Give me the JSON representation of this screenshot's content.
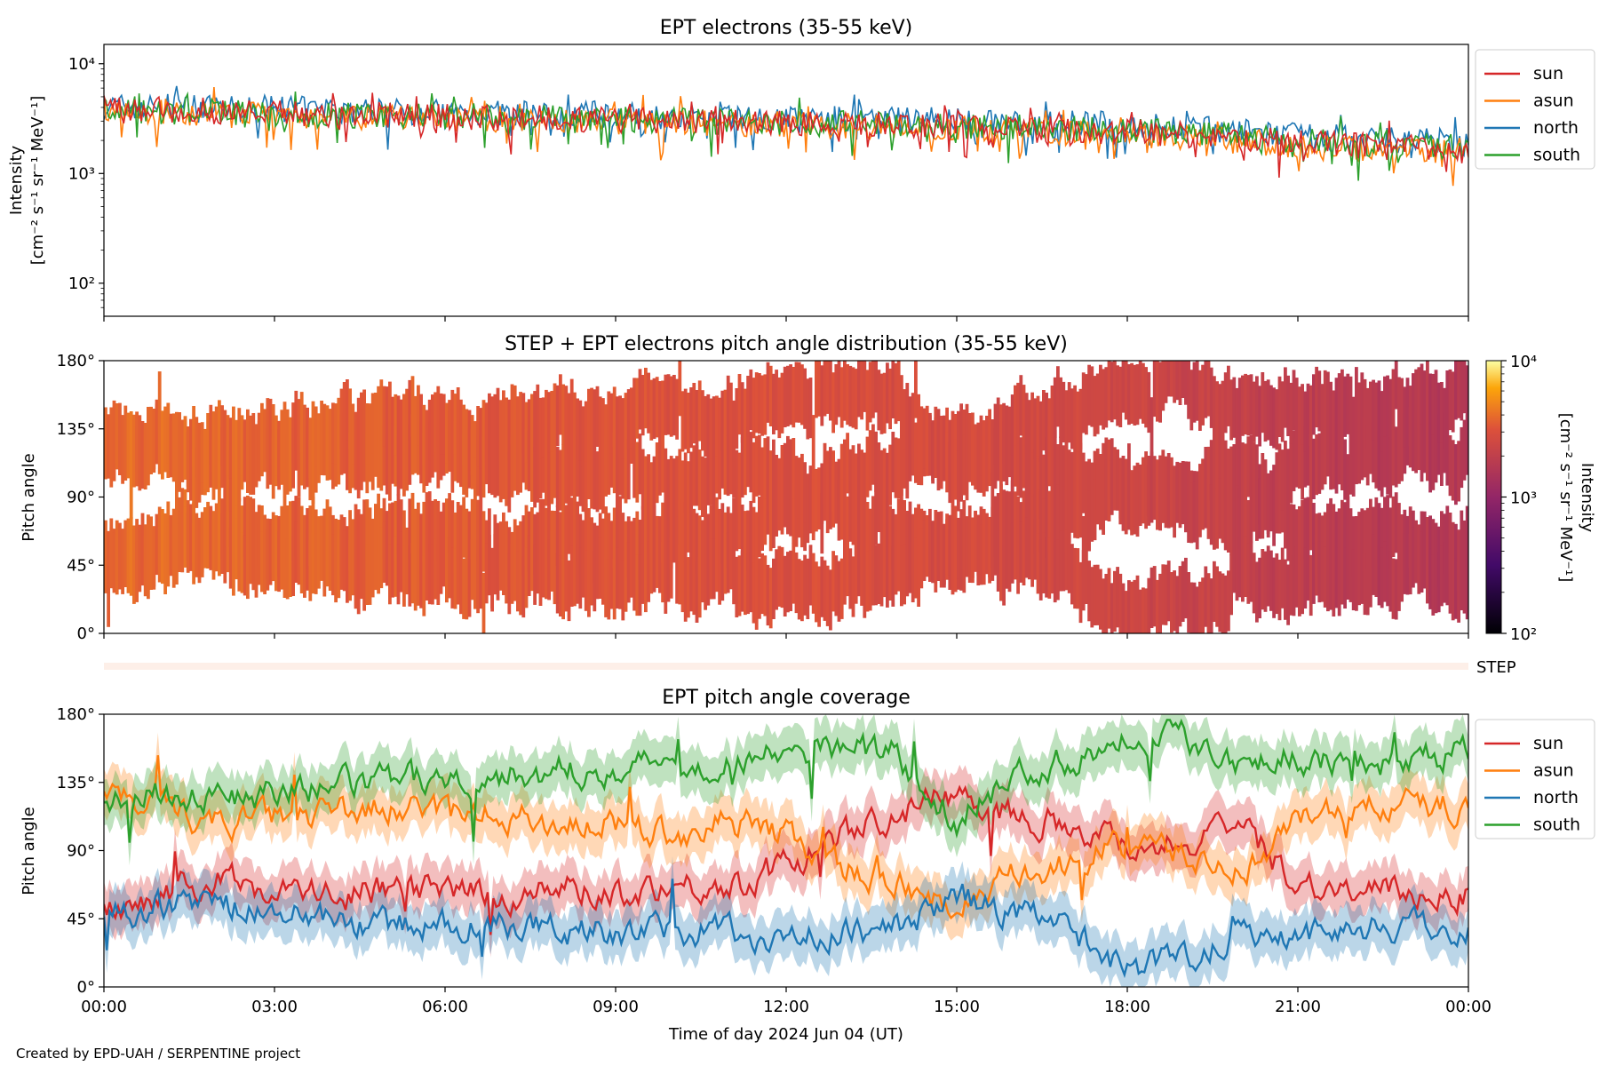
{
  "footer": "Created by EPD-UAH / SERPENTINE project",
  "colors": {
    "sun": "#d62728",
    "asun": "#ff7f0e",
    "north": "#1f77b4",
    "south": "#2ca02c"
  },
  "chart_data": [
    {
      "id": "panel1",
      "type": "line",
      "title": "EPT electrons (35-55 keV)",
      "ylabel": [
        "Intensity",
        "[cm⁻² s⁻¹ sr⁻¹ MeV⁻¹]"
      ],
      "yscale": "log",
      "ylim": [
        50,
        15000
      ],
      "yticks": [
        {
          "v": 100,
          "l": "10²"
        },
        {
          "v": 1000,
          "l": "10³"
        },
        {
          "v": 10000,
          "l": "10⁴"
        }
      ],
      "xlim_hours": [
        0,
        24
      ],
      "legend": "top-right outside",
      "series": [
        {
          "name": "sun",
          "hours": [
            0,
            3,
            6,
            9,
            12,
            15,
            18,
            21,
            24
          ],
          "values": [
            3900,
            3600,
            3300,
            3100,
            2900,
            2700,
            2400,
            1900,
            1600
          ]
        },
        {
          "name": "asun",
          "hours": [
            0,
            3,
            6,
            9,
            12,
            15,
            18,
            21,
            24
          ],
          "values": [
            3700,
            3400,
            3200,
            3000,
            2800,
            2600,
            2300,
            1800,
            1500
          ]
        },
        {
          "name": "north",
          "hours": [
            0,
            3,
            6,
            9,
            12,
            15,
            18,
            21,
            24
          ],
          "values": [
            4100,
            3900,
            3600,
            3400,
            3200,
            3000,
            2800,
            2200,
            1900
          ]
        },
        {
          "name": "south",
          "hours": [
            0,
            3,
            6,
            9,
            12,
            15,
            18,
            21,
            24
          ],
          "values": [
            3800,
            3500,
            3300,
            3100,
            2900,
            2700,
            2500,
            2000,
            1700
          ]
        }
      ]
    },
    {
      "id": "panel2",
      "type": "heatmap",
      "title": "STEP + EPT electrons pitch angle distribution (35-55 keV)",
      "ylabel": "Pitch angle",
      "ylim": [
        0,
        180
      ],
      "yticks": [
        {
          "v": 0,
          "l": "0°"
        },
        {
          "v": 45,
          "l": "45°"
        },
        {
          "v": 90,
          "l": "90°"
        },
        {
          "v": 135,
          "l": "135°"
        },
        {
          "v": 180,
          "l": "180°"
        }
      ],
      "xlim_hours": [
        0,
        24
      ],
      "colorbar": {
        "label": [
          "Intensity",
          "[cm⁻² s⁻¹ sr⁻¹ MeV⁻¹]"
        ],
        "scale": "log",
        "range": [
          100,
          10000
        ],
        "ticks": [
          {
            "v": 100,
            "l": "10²"
          },
          {
            "v": 1000,
            "l": "10³"
          },
          {
            "v": 10000,
            "l": "10⁴"
          }
        ]
      },
      "step_label": "STEP",
      "intensity_hours": [
        0,
        3,
        6,
        9,
        12,
        15,
        18,
        21,
        24
      ],
      "intensity_values": [
        3900,
        3600,
        3300,
        3100,
        2900,
        2700,
        2400,
        1900,
        1600
      ]
    },
    {
      "id": "panel3",
      "type": "line",
      "title": "EPT pitch angle coverage",
      "ylabel": "Pitch angle",
      "xlabel": "Time of day 2024 Jun 04 (UT)",
      "ylim": [
        0,
        180
      ],
      "yticks": [
        {
          "v": 0,
          "l": "0°"
        },
        {
          "v": 45,
          "l": "45°"
        },
        {
          "v": 90,
          "l": "90°"
        },
        {
          "v": 135,
          "l": "135°"
        },
        {
          "v": 180,
          "l": "180°"
        }
      ],
      "xlim_hours": [
        0,
        24
      ],
      "xticks": [
        {
          "v": 0,
          "l": "00:00"
        },
        {
          "v": 3,
          "l": "03:00"
        },
        {
          "v": 6,
          "l": "06:00"
        },
        {
          "v": 9,
          "l": "09:00"
        },
        {
          "v": 12,
          "l": "12:00"
        },
        {
          "v": 15,
          "l": "15:00"
        },
        {
          "v": 18,
          "l": "18:00"
        },
        {
          "v": 21,
          "l": "21:00"
        },
        {
          "v": 24,
          "l": "00:00"
        }
      ],
      "legend": "top-right outside",
      "series": [
        {
          "name": "sun",
          "hours": [
            0,
            1,
            2,
            3,
            4,
            5,
            6,
            7,
            8,
            9,
            10,
            11,
            12,
            13,
            14,
            15,
            16,
            17,
            18,
            19,
            20,
            21,
            22,
            23,
            24
          ],
          "values": [
            50,
            62,
            70,
            65,
            60,
            65,
            62,
            60,
            65,
            62,
            68,
            65,
            80,
            100,
            115,
            128,
            115,
            108,
            95,
            95,
            105,
            70,
            62,
            62,
            62
          ]
        },
        {
          "name": "asun",
          "hours": [
            0,
            1,
            2,
            3,
            4,
            5,
            6,
            7,
            8,
            9,
            10,
            11,
            12,
            13,
            14,
            15,
            16,
            17,
            18,
            19,
            20,
            21,
            22,
            23,
            24
          ],
          "values": [
            130,
            118,
            108,
            112,
            115,
            118,
            112,
            112,
            108,
            108,
            100,
            110,
            100,
            80,
            68,
            52,
            72,
            80,
            95,
            88,
            75,
            110,
            118,
            120,
            120
          ]
        },
        {
          "name": "north",
          "hours": [
            0,
            1,
            2,
            3,
            4,
            5,
            6,
            7,
            8,
            9,
            10,
            11,
            12,
            13,
            14,
            15,
            16,
            17,
            18,
            19,
            20,
            21,
            22,
            23,
            24
          ],
          "values": [
            45,
            55,
            55,
            48,
            45,
            40,
            40,
            42,
            38,
            38,
            35,
            38,
            32,
            35,
            40,
            60,
            48,
            38,
            12,
            20,
            38,
            35,
            40,
            40,
            40
          ]
        },
        {
          "name": "south",
          "hours": [
            0,
            1,
            2,
            3,
            4,
            5,
            6,
            7,
            8,
            9,
            10,
            11,
            12,
            13,
            14,
            15,
            16,
            17,
            18,
            19,
            20,
            21,
            22,
            23,
            24
          ],
          "values": [
            120,
            130,
            125,
            128,
            132,
            135,
            138,
            140,
            142,
            145,
            148,
            150,
            152,
            160,
            150,
            110,
            140,
            150,
            168,
            165,
            150,
            152,
            150,
            148,
            155
          ]
        }
      ]
    }
  ]
}
